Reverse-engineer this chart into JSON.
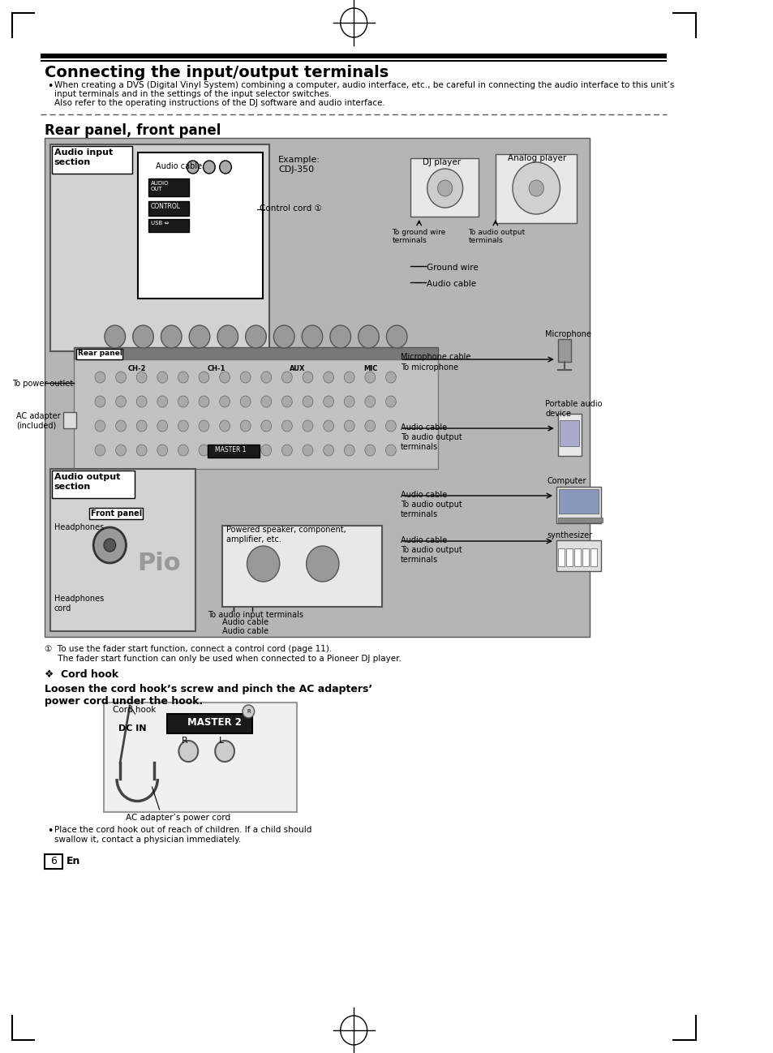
{
  "page_bg": "#ffffff",
  "top_title": "Connecting the input/output terminals",
  "bullet_text_line1": "When creating a DVS (Digital Vinyl System) combining a computer, audio interface, etc., be careful in connecting the audio interface to this unit’s",
  "bullet_text_line2": "input terminals and in the settings of the input selector switches.",
  "bullet_text_line3": "Also refer to the operating instructions of the DJ software and audio interface.",
  "section_title": "Rear panel, front panel",
  "audio_input_label": "Audio input\nsection",
  "audio_output_label": "Audio output\nsection",
  "rear_panel_label": "Rear panel",
  "front_panel_label": "Front panel",
  "example_label": "Example:\nCDJ-350",
  "dj_player_label": "DJ player",
  "analog_player_label": "Analog player",
  "microphone_label": "Microphone",
  "portable_audio_label": "Portable audio\ndevice",
  "computer_label": "Computer",
  "synthesizer_label": "synthesizer",
  "ground_wire_label": "Ground wire",
  "audio_cable_label": "Audio cable",
  "microphone_cable_label": "Microphone cable",
  "to_microphone_label": "To microphone",
  "to_ground_wire_label": "To ground wire\nterminals",
  "to_audio_output_label": "To audio output\nterminals",
  "control_cord_label": "Control cord ①",
  "to_power_outlet_label": "To power outlet",
  "ac_adapter_label": "AC adapter\n(included)",
  "headphones_label": "Headphones",
  "headphones_cord_label": "Headphones\ncord",
  "powered_speaker_label": "Powered speaker, component,\namplifier, etc.",
  "to_audio_input_terminals_label": "To audio input terminals",
  "footnote1": "①  To use the fader start function, connect a control cord (page 11).",
  "footnote2": "     The fader start function can only be used when connected to a Pioneer DJ player.",
  "cord_hook_title": "❖  Cord hook",
  "cord_hook_bold": "Loosen the cord hook’s screw and pinch the AC adapters’\npower cord under the hook.",
  "cord_hook_label": "Cord hook",
  "ac_adapter_power_cord_label": "AC adapter’s power cord",
  "master2_label": "MASTER 2",
  "dc_in_label": "DC IN",
  "r_label": "R",
  "l_label": "L",
  "bullet_note_line1": "Place the cord hook out of reach of children. If a child should",
  "bullet_note_line2": "swallow it, contact a physician immediately.",
  "page_number": "6",
  "page_en": "En",
  "diagram_bg": "#b5b5b5",
  "diagram_inner_bg": "#c8c8c8",
  "white": "#ffffff",
  "black": "#000000",
  "dark": "#1a1a1a",
  "gray_med": "#888888",
  "gray_light": "#e0e0e0",
  "gray_dark": "#555555"
}
